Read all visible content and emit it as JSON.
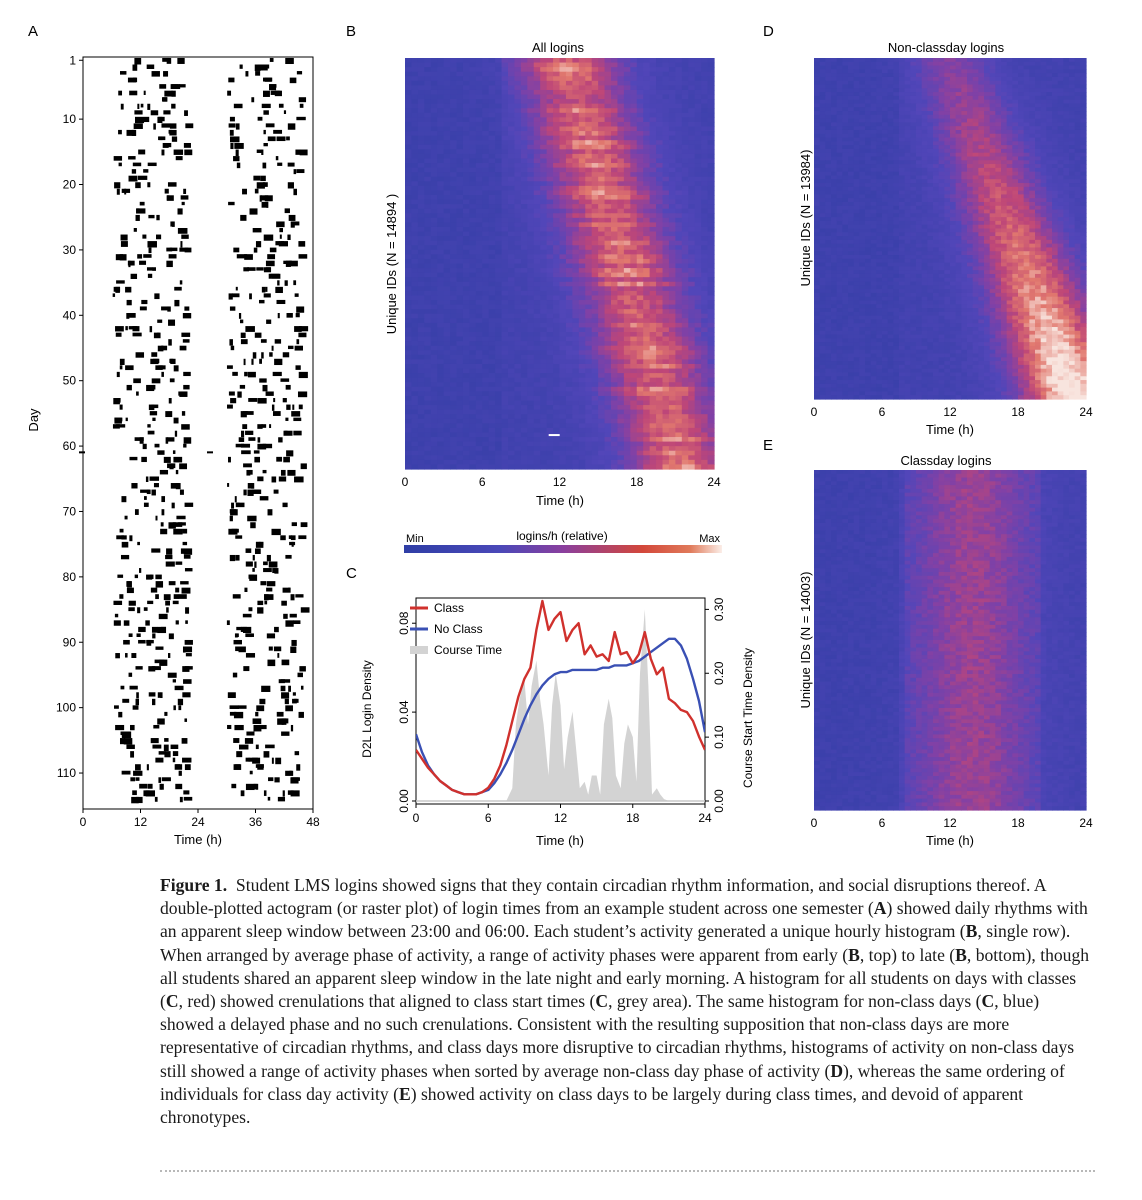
{
  "panels": {
    "A": {
      "label": "A",
      "ylabel": "Day",
      "xlabel": "Time (h)",
      "x_ticks": [
        "0",
        "12",
        "24",
        "36",
        "48"
      ],
      "y_ticks": [
        "1",
        "10",
        "20",
        "30",
        "40",
        "50",
        "60",
        "70",
        "80",
        "90",
        "100",
        "110"
      ]
    },
    "B": {
      "label": "B",
      "title": "All logins",
      "ylabel": "Unique IDs (N = 14894 )",
      "xlabel": "Time (h)",
      "x_ticks": [
        "0",
        "6",
        "12",
        "18",
        "24"
      ]
    },
    "colorbar": {
      "min_label": "Min",
      "title": "logins/h (relative)",
      "max_label": "Max"
    },
    "C": {
      "label": "C",
      "ylabel_left": "D2L Login Density",
      "ylabel_right": "Course Start Time Density",
      "xlabel": "Time (h)",
      "x_ticks": [
        "0",
        "6",
        "12",
        "18",
        "24"
      ],
      "y_left_ticks": [
        "0.00",
        "0.04",
        "0.08"
      ],
      "y_right_ticks": [
        "0.00",
        "0.10",
        "0.20",
        "0.30"
      ],
      "legend": [
        "Class",
        "No Class",
        "Course Time"
      ]
    },
    "D": {
      "label": "D",
      "title": "Non-classday logins",
      "ylabel": "Unique IDs (N = 13984)",
      "xlabel": "Time (h)",
      "x_ticks": [
        "0",
        "6",
        "12",
        "18",
        "24"
      ]
    },
    "E": {
      "label": "E",
      "title": "Classday logins",
      "ylabel": "Unique IDs (N = 14003)",
      "xlabel": "Time (h)",
      "x_ticks": [
        "0",
        "6",
        "12",
        "18",
        "24"
      ]
    }
  },
  "colors": {
    "class": "#d0312d",
    "no_class": "#3a50b4",
    "course_time": "#d3d3d3",
    "heat_low": "#3d44b8",
    "heat_high": "#f5e1d8"
  },
  "chart_data": [
    {
      "type": "line",
      "panel": "C",
      "x_range": [
        0,
        24
      ],
      "y_left_range": [
        0,
        0.09
      ],
      "y_right_range": [
        0,
        0.31
      ],
      "series": [
        {
          "name": "Class",
          "axis": "left",
          "x": [
            0,
            0.5,
            1,
            1.5,
            2,
            2.5,
            3,
            3.5,
            4,
            4.5,
            5,
            5.5,
            6,
            6.5,
            7,
            7.5,
            8,
            8.5,
            9,
            9.5,
            10,
            10.5,
            11,
            11.5,
            12,
            12.5,
            13,
            13.5,
            14,
            14.5,
            15,
            15.5,
            16,
            16.5,
            17,
            17.5,
            18,
            18.5,
            19,
            19.5,
            20,
            20.5,
            21,
            21.5,
            22,
            22.5,
            23,
            23.5,
            24
          ],
          "y": [
            0.023,
            0.019,
            0.015,
            0.012,
            0.009,
            0.007,
            0.005,
            0.004,
            0.003,
            0.003,
            0.003,
            0.004,
            0.006,
            0.01,
            0.016,
            0.025,
            0.036,
            0.047,
            0.055,
            0.06,
            0.077,
            0.09,
            0.077,
            0.082,
            0.085,
            0.072,
            0.077,
            0.08,
            0.066,
            0.07,
            0.065,
            0.066,
            0.063,
            0.076,
            0.066,
            0.067,
            0.062,
            0.066,
            0.076,
            0.064,
            0.057,
            0.06,
            0.046,
            0.044,
            0.041,
            0.04,
            0.036,
            0.029,
            0.023
          ]
        },
        {
          "name": "No Class",
          "axis": "left",
          "x": [
            0,
            0.5,
            1,
            1.5,
            2,
            2.5,
            3,
            3.5,
            4,
            4.5,
            5,
            5.5,
            6,
            6.5,
            7,
            7.5,
            8,
            8.5,
            9,
            9.5,
            10,
            10.5,
            11,
            11.5,
            12,
            12.5,
            13,
            13.5,
            14,
            14.5,
            15,
            15.5,
            16,
            16.5,
            17,
            17.5,
            18,
            18.5,
            19,
            19.5,
            20,
            20.5,
            21,
            21.5,
            22,
            22.5,
            23,
            23.5,
            24
          ],
          "y": [
            0.03,
            0.022,
            0.016,
            0.012,
            0.009,
            0.007,
            0.005,
            0.004,
            0.003,
            0.003,
            0.003,
            0.004,
            0.005,
            0.008,
            0.012,
            0.017,
            0.023,
            0.03,
            0.037,
            0.043,
            0.048,
            0.052,
            0.055,
            0.057,
            0.058,
            0.058,
            0.059,
            0.059,
            0.059,
            0.059,
            0.059,
            0.06,
            0.06,
            0.061,
            0.061,
            0.061,
            0.062,
            0.063,
            0.065,
            0.067,
            0.069,
            0.071,
            0.073,
            0.073,
            0.07,
            0.064,
            0.055,
            0.045,
            0.031
          ]
        },
        {
          "name": "Course Time",
          "axis": "right",
          "type": "area",
          "x": [
            0,
            7.5,
            8,
            8.3,
            8.6,
            9,
            9.3,
            9.6,
            10,
            10.3,
            10.6,
            11,
            11.3,
            11.6,
            12,
            12.3,
            12.6,
            13,
            13.3,
            13.6,
            14,
            14.3,
            14.6,
            15,
            15.3,
            15.6,
            16,
            16.3,
            16.6,
            17,
            17.3,
            17.6,
            18,
            18.3,
            18.6,
            19,
            19.3,
            19.6,
            20,
            20.3,
            20.6,
            21,
            24
          ],
          "y": [
            0,
            0,
            0.02,
            0.12,
            0.16,
            0.19,
            0.12,
            0.18,
            0.22,
            0.16,
            0.12,
            0.04,
            0.15,
            0.2,
            0.15,
            0.05,
            0.1,
            0.14,
            0.08,
            0.02,
            0.03,
            0.01,
            0.04,
            0.04,
            0.01,
            0.12,
            0.16,
            0.13,
            0.04,
            0.02,
            0.09,
            0.12,
            0.1,
            0.03,
            0.2,
            0.3,
            0.18,
            0.01,
            0.02,
            0.01,
            0.003,
            0,
            0
          ]
        }
      ]
    },
    {
      "type": "heatmap",
      "panel": "B",
      "title": "All logins",
      "xlabel": "Time (h)",
      "ylabel": "Unique IDs (N = 14894 )",
      "x_range": [
        0,
        24
      ]
    },
    {
      "type": "heatmap",
      "panel": "D",
      "title": "Non-classday logins",
      "xlabel": "Time (h)",
      "ylabel": "Unique IDs (N = 13984)",
      "x_range": [
        0,
        24
      ]
    },
    {
      "type": "heatmap",
      "panel": "E",
      "title": "Classday logins",
      "xlabel": "Time (h)",
      "ylabel": "Unique IDs (N = 14003)",
      "x_range": [
        0,
        24
      ]
    },
    {
      "type": "scatter",
      "panel": "A",
      "title": "Actogram",
      "xlabel": "Time (h)",
      "ylabel": "Day",
      "x_range": [
        0,
        48
      ],
      "y_range": [
        1,
        115
      ]
    }
  ],
  "caption": {
    "title": "Figure 1.",
    "s1": "Student LMS logins showed signs that they contain circadian rhythm information, and social disruptions thereof. A double-plotted actogram (or raster plot) of login times from an example student across one semester (",
    "b1": "A",
    "s2": ") showed daily rhythms with an apparent sleep window between 23:00 and 06:00. Each student’s activity generated a unique hourly histogram (",
    "b2": "B",
    "s3": ", single row). When arranged by average phase of activity, a range of activity phases were apparent from early (",
    "b3": "B",
    "s4": ", top) to late (",
    "b4": "B",
    "s5": ", bottom), though all students shared an apparent sleep window in the late night and early morning. A histogram for all students on days with classes (",
    "b5": "C",
    "s6": ", red) showed crenulations that aligned to class start times (",
    "b6": "C",
    "s7": ", grey area). The same histogram for non-class days (",
    "b7": "C",
    "s8": ", blue) showed a delayed phase and no such crenulations. Consistent with the resulting supposition that non-class days are more representative of circadian rhythms, and class days more disruptive to circadian rhythms, histograms of activity on non-class days still showed a range of activity phases when sorted by average non-class day phase of activity (",
    "b8": "D",
    "s9": "), whereas the same ordering of individuals for class day activity (",
    "b9": "E",
    "s10": ") showed activity on class days to be largely during class times, and devoid of apparent chronotypes."
  }
}
